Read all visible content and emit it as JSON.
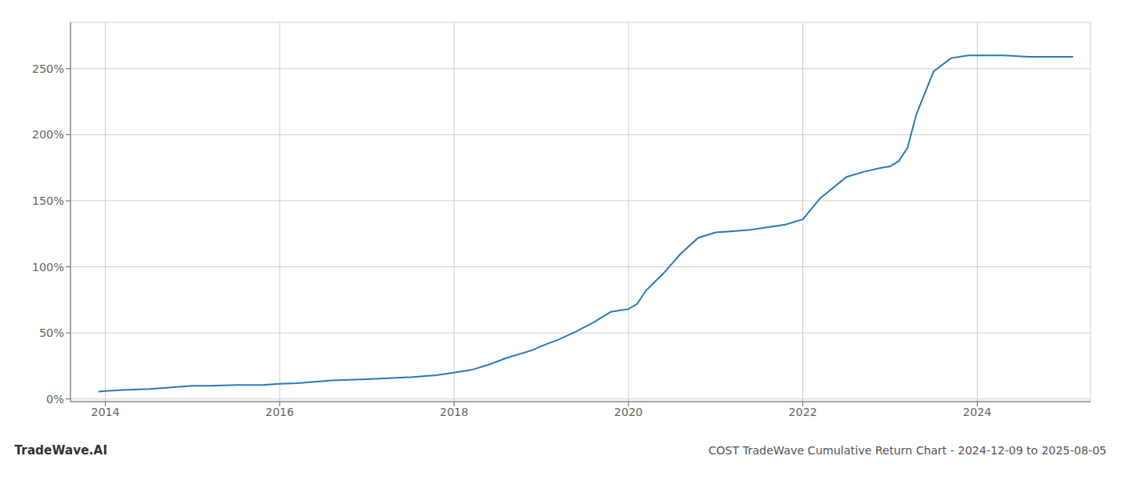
{
  "chart_data": {
    "type": "line",
    "title": "COST TradeWave Cumulative Return Chart - 2024-12-09 to 2025-08-05",
    "annotations": [
      "TradeWave.AI"
    ],
    "color": "#2b7bba",
    "grid": true,
    "xlim": [
      2013.6,
      2025.3
    ],
    "ylim": [
      -0.02,
      2.85
    ],
    "xticks": [
      2014,
      2016,
      2018,
      2020,
      2022,
      2024
    ],
    "yticks": [
      {
        "value": 0,
        "label": "0%"
      },
      {
        "value": 0.5,
        "label": "50%"
      },
      {
        "value": 1,
        "label": "100%"
      },
      {
        "value": 1.5,
        "label": "150%"
      },
      {
        "value": 2,
        "label": "200%"
      },
      {
        "value": 2.5,
        "label": "250%"
      }
    ],
    "x": [
      2013.92,
      2014.0,
      2014.2,
      2014.5,
      2014.7,
      2014.9,
      2015.0,
      2015.2,
      2015.5,
      2015.8,
      2016.0,
      2016.2,
      2016.4,
      2016.6,
      2016.8,
      2017.0,
      2017.2,
      2017.5,
      2017.8,
      2018.0,
      2018.2,
      2018.4,
      2018.6,
      2018.9,
      2019.0,
      2019.2,
      2019.4,
      2019.6,
      2019.8,
      2020.0,
      2020.1,
      2020.2,
      2020.4,
      2020.6,
      2020.8,
      2021.0,
      2021.2,
      2021.4,
      2021.6,
      2021.8,
      2022.0,
      2022.2,
      2022.5,
      2022.7,
      2022.9,
      2023.0,
      2023.1,
      2023.2,
      2023.3,
      2023.5,
      2023.7,
      2023.9,
      2024.0,
      2024.3,
      2024.6,
      2024.9,
      2025.0,
      2025.1
    ],
    "values": [
      0.055,
      0.06,
      0.068,
      0.075,
      0.085,
      0.095,
      0.1,
      0.1,
      0.105,
      0.105,
      0.115,
      0.12,
      0.13,
      0.14,
      0.145,
      0.15,
      0.155,
      0.165,
      0.18,
      0.2,
      0.22,
      0.26,
      0.31,
      0.37,
      0.4,
      0.45,
      0.51,
      0.58,
      0.66,
      0.68,
      0.72,
      0.82,
      0.95,
      1.1,
      1.22,
      1.26,
      1.27,
      1.28,
      1.3,
      1.32,
      1.36,
      1.52,
      1.68,
      1.72,
      1.75,
      1.76,
      1.8,
      1.9,
      2.15,
      2.48,
      2.58,
      2.6,
      2.6,
      2.6,
      2.59,
      2.59,
      2.59,
      2.59
    ]
  }
}
